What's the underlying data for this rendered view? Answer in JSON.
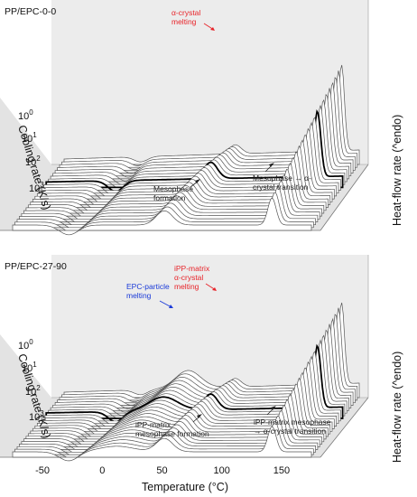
{
  "chart_data": [
    {
      "type": "line",
      "panel_title": "PP/EPC-0-0",
      "xlabel": "Temperature (°C)",
      "ylabel": "Cooling rate (K/s)",
      "zlabel": "Heat-flow rate (^endo)",
      "ytick_labels": [
        {
          "base": "10",
          "exp": "0",
          "value": 1
        },
        {
          "base": "10",
          "exp": "1",
          "value": 10
        },
        {
          "base": "10",
          "exp": "2",
          "value": 100
        },
        {
          "base": "10",
          "exp": "3",
          "value": 1000
        }
      ],
      "curve_count": 24,
      "highlighted_curve": 8,
      "peaks": [
        {
          "name": "mesophase-formation",
          "temperature": -10,
          "sign": -1,
          "width": 8
        },
        {
          "name": "alpha-crystal-transition",
          "temperature": 70,
          "sign": 1,
          "width": 7
        },
        {
          "name": "alpha-crystal-melting",
          "temperature": 160,
          "sign": 1,
          "width": 3.5
        }
      ],
      "annotations": [
        {
          "text": [
            "α-crystal",
            "melting"
          ],
          "color": "#e8242a"
        },
        {
          "text": [
            "Mesophase",
            "formation"
          ],
          "color": "#222222"
        },
        {
          "text": [
            "Mesophase → α-",
            "crystal transition"
          ],
          "color": "#222222"
        }
      ]
    },
    {
      "type": "line",
      "panel_title": "PP/EPC-27-90",
      "xlabel": "Temperature (°C)",
      "ylabel": "Cooling rate (K/s)",
      "zlabel": "Heat-flow rate (^endo)",
      "ytick_labels": [
        {
          "base": "10",
          "exp": "0",
          "value": 1
        },
        {
          "base": "10",
          "exp": "1",
          "value": 10
        },
        {
          "base": "10",
          "exp": "2",
          "value": 100
        },
        {
          "base": "10",
          "exp": "3",
          "value": 1000
        }
      ],
      "curve_count": 24,
      "highlighted_curve": 8,
      "peaks": [
        {
          "name": "epc-particle-melting",
          "temperature": 30,
          "sign": 1,
          "width": 15
        },
        {
          "name": "matrix-mesophase-formation",
          "temperature": -10,
          "sign": -1,
          "width": 8
        },
        {
          "name": "matrix-alpha-crystal-transition",
          "temperature": 70,
          "sign": 1,
          "width": 7
        },
        {
          "name": "matrix-alpha-crystal-melting",
          "temperature": 160,
          "sign": 1,
          "width": 3.5
        }
      ],
      "annotations": [
        {
          "text": [
            "iPP-matrix",
            "α-crystal",
            "melting"
          ],
          "color": "#e8242a"
        },
        {
          "text": [
            "EPC-particle",
            "melting"
          ],
          "color": "#1a3ad8"
        },
        {
          "text": [
            "iPP-matrix",
            "mesophase formation"
          ],
          "color": "#222222"
        },
        {
          "text": [
            "iPP-matrix mesophase",
            "→ α-crystal transition"
          ],
          "color": "#222222"
        }
      ]
    }
  ],
  "x_axis": {
    "label": "Temperature (°C)",
    "ticks": [
      -50,
      0,
      50,
      100,
      150
    ],
    "tick_labels": [
      "-50",
      "0",
      "50",
      "100",
      "150"
    ],
    "range": [
      -75,
      175
    ]
  },
  "colors": {
    "curve": "#555555",
    "highlight": "#000000",
    "floor": "#dedede",
    "wall": "#ececec",
    "annotation_red": "#e8242a",
    "annotation_blue": "#1a3ad8"
  }
}
